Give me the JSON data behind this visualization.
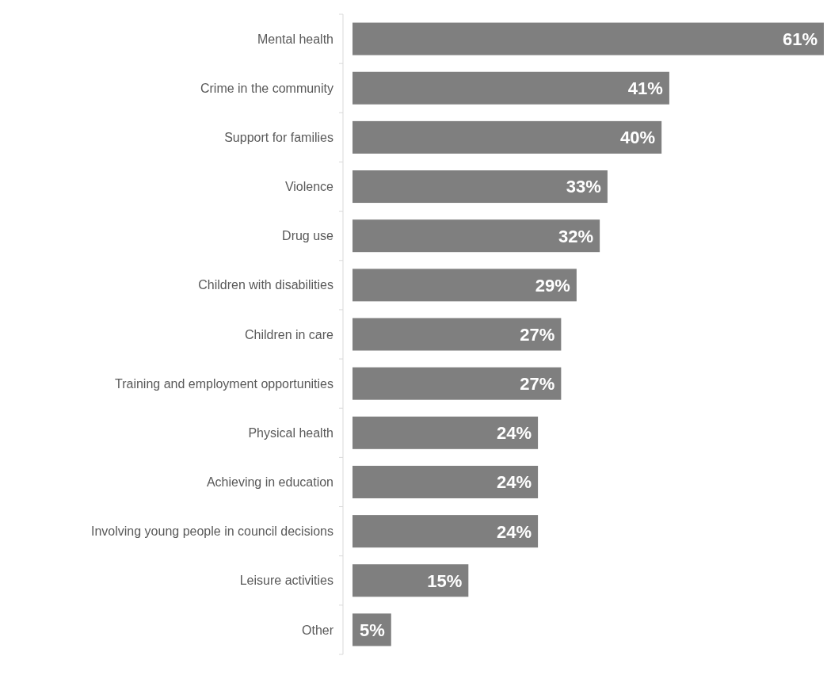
{
  "chart_data": {
    "type": "bar",
    "orientation": "horizontal",
    "categories": [
      "Mental health",
      "Crime in the community",
      "Support for families",
      "Violence",
      "Drug use",
      "Children with disabilities",
      "Children in care",
      "Training and employment opportunities",
      "Physical health",
      "Achieving in education",
      "Involving young people in council decisions",
      "Leisure activities",
      "Other"
    ],
    "values": [
      61,
      41,
      40,
      33,
      32,
      29,
      27,
      27,
      24,
      24,
      24,
      15,
      5
    ],
    "value_labels": [
      "61%",
      "41%",
      "40%",
      "33%",
      "32%",
      "29%",
      "27%",
      "27%",
      "24%",
      "24%",
      "24%",
      "15%",
      "5%"
    ],
    "color": "#7f7f7f"
  }
}
